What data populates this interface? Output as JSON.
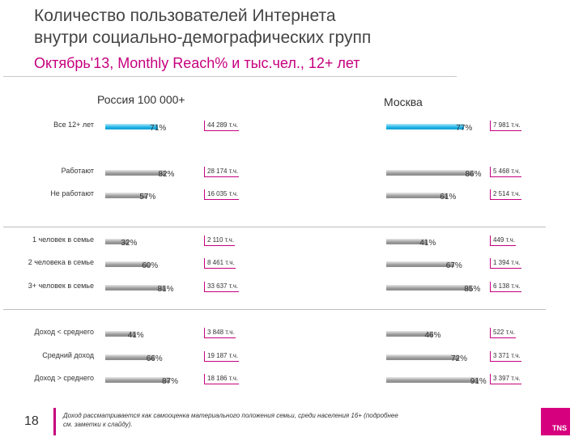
{
  "header": {
    "title_line1": "Количество пользователей Интернета",
    "title_line2": "внутри социально-демографических групп",
    "subtitle": "Октябрь'13, Monthly Reach% и тыс.чел., 12+ лет"
  },
  "chart_data": {
    "type": "bar",
    "orientation": "horizontal",
    "series": [
      {
        "name": "Россия 100 000+",
        "reach_pct": [
          71,
          82,
          57,
          32,
          60,
          81,
          41,
          66,
          87
        ],
        "reach_labels": [
          "71%",
          "82%",
          "57%",
          "32%",
          "60%",
          "81%",
          "41%",
          "66%",
          "87%"
        ],
        "users_labels": [
          "44 289 т.ч.",
          "28 174 т.ч.",
          "16 035 т.ч.",
          "2 110 т.ч.",
          "8 461 т.ч.",
          "33 637 т.ч.",
          "3 848 т.ч.",
          "19 187 т.ч.",
          "18 186 т.ч."
        ]
      },
      {
        "name": "Москва",
        "reach_pct": [
          77,
          86,
          61,
          41,
          67,
          85,
          46,
          72,
          91
        ],
        "reach_labels": [
          "77%",
          "86%",
          "61%",
          "41%",
          "67%",
          "85%",
          "46%",
          "72%",
          "91%"
        ],
        "users_labels": [
          "7 981 т.ч.",
          "5 468 т.ч.",
          "2 514 т.ч.",
          "449 т.ч.",
          "1 394 т.ч.",
          "6 138 т.ч.",
          "522 т.ч.",
          "3 371 т.ч.",
          "3 397 т.ч."
        ]
      }
    ],
    "categories": [
      "Все 12+ лет",
      "Работают",
      "Не работают",
      "1 человек в семье",
      "2 человека в семье",
      "3+ человек в семье",
      "Доход < среднего",
      "Средний доход",
      "Доход > среднего"
    ],
    "highlight_category": "Все 12+ лет",
    "colors": {
      "highlight": "#1fb2e6",
      "bar": "#9b9b9b",
      "accent": "#c6007e"
    }
  },
  "footer": {
    "page_number": "18",
    "footnote": "Доход рассматривается как самооценка материального положения семьи, среди населения 16+ (подробнее см. заметки к слайду).",
    "logo_text": "TNS"
  }
}
